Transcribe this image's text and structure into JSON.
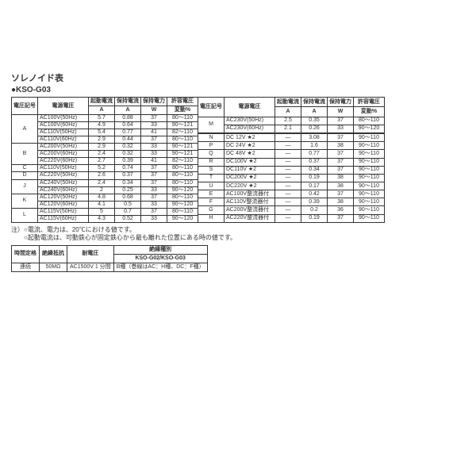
{
  "title": "ソレノイド表",
  "subtitle": "●KSO-G03",
  "columns": {
    "code_h": "電圧記号",
    "supply_h": "電源電圧",
    "inrush_h1": "起動電流",
    "inrush_h2": "A",
    "hold_a_h1": "保持電流",
    "hold_a_h2": "A",
    "hold_w_h1": "保持電力",
    "hold_w_h2": "W",
    "tol_h1": "許容電圧",
    "tol_h2": "変動%"
  },
  "left_rows": [
    {
      "code": "A",
      "span": 4,
      "supply": "AC100V(50Hz)",
      "inrush": "5.7",
      "holdA": "0.88",
      "holdW": "37",
      "tol": "80～110"
    },
    {
      "supply": "AC100V(60Hz)",
      "inrush": "4.9",
      "holdA": "0.64",
      "holdW": "33",
      "tol": "90～121"
    },
    {
      "supply": "AC110V(50Hz)",
      "inrush": "5.4",
      "holdA": "0.77",
      "holdW": "41",
      "tol": "82～110"
    },
    {
      "supply": "AC110V(60Hz)",
      "inrush": "2.9",
      "holdA": "0.44",
      "holdW": "37",
      "tol": "80～110"
    },
    {
      "code": "B",
      "span": 3,
      "supply": "AC200V(50Hz)",
      "inrush": "2.9",
      "holdA": "0.32",
      "holdW": "33",
      "tol": "90～121"
    },
    {
      "supply": "AC200V(60Hz)",
      "inrush": "2.4",
      "holdA": "0.32",
      "holdW": "33",
      "tol": "90～121"
    },
    {
      "supply": "AC220V(60Hz)",
      "inrush": "2.7",
      "holdA": "0.39",
      "holdW": "41",
      "tol": "82～110"
    },
    {
      "code": "C",
      "span": 1,
      "supply": "AC110V(50Hz)",
      "inrush": "5.2",
      "holdA": "0.74",
      "holdW": "37",
      "tol": "80～110"
    },
    {
      "code": "D",
      "span": 1,
      "supply": "AC220V(50Hz)",
      "inrush": "2.6",
      "holdA": "0.37",
      "holdW": "37",
      "tol": "80～110"
    },
    {
      "code": "J",
      "span": 2,
      "supply": "AC240V(50Hz)",
      "inrush": "2.4",
      "holdA": "0.34",
      "holdW": "37",
      "tol": "80～110"
    },
    {
      "supply": "AC240V(60Hz)",
      "inrush": "2",
      "holdA": "0.25",
      "holdW": "33",
      "tol": "90～120"
    },
    {
      "code": "K",
      "span": 2,
      "supply": "AC120V(50Hz)",
      "inrush": "4.8",
      "holdA": "0.68",
      "holdW": "37",
      "tol": "80～110"
    },
    {
      "supply": "AC120V(60Hz)",
      "inrush": "4.1",
      "holdA": "0.5",
      "holdW": "33",
      "tol": "90～120"
    },
    {
      "code": "L",
      "span": 2,
      "supply": "AC115V(50Hz)",
      "inrush": "5",
      "holdA": "0.7",
      "holdW": "37",
      "tol": "80～110"
    },
    {
      "supply": "AC115V(60Hz)",
      "inrush": "4.3",
      "holdA": "0.52",
      "holdW": "33",
      "tol": "90～120"
    }
  ],
  "right_rows": [
    {
      "code": "M",
      "span": 2,
      "supply": "AC230V(50Hz)",
      "inrush": "2.5",
      "holdA": "0.35",
      "holdW": "37",
      "tol": "80～110"
    },
    {
      "supply": "AC230V(60Hz)",
      "inrush": "2.1",
      "holdA": "0.26",
      "holdW": "33",
      "tol": "90～120"
    },
    {
      "code": "",
      "span": 1,
      "supply": "",
      "inrush": "",
      "holdA": "",
      "holdW": "",
      "tol": ""
    },
    {
      "code": "N",
      "span": 1,
      "supply": "DC 12V ★2",
      "inrush": "—",
      "holdA": "3.08",
      "holdW": "37",
      "tol": "90～110"
    },
    {
      "code": "P",
      "span": 1,
      "supply": "DC 24V ★2",
      "inrush": "—",
      "holdA": "1.6",
      "holdW": "38",
      "tol": "90～110"
    },
    {
      "code": "Q",
      "span": 1,
      "supply": "DC 48V ★2",
      "inrush": "—",
      "holdA": "0.77",
      "holdW": "37",
      "tol": "90～110"
    },
    {
      "code": "R",
      "span": 1,
      "supply": "DC100V ★2",
      "inrush": "—",
      "holdA": "0.37",
      "holdW": "37",
      "tol": "90～110"
    },
    {
      "code": "S",
      "span": 1,
      "supply": "DC110V ★2",
      "inrush": "—",
      "holdA": "0.34",
      "holdW": "37",
      "tol": "90～110"
    },
    {
      "code": "T",
      "span": 1,
      "supply": "DC200V ★2",
      "inrush": "—",
      "holdA": "0.19",
      "holdW": "38",
      "tol": "90～110"
    },
    {
      "code": "U",
      "span": 1,
      "supply": "DC220V ★2",
      "inrush": "—",
      "holdA": "0.17",
      "holdW": "38",
      "tol": "90～110"
    },
    {
      "code": "E",
      "span": 1,
      "supply": "AC100V整流器付",
      "inrush": "—",
      "holdA": "0.42",
      "holdW": "37",
      "tol": "90～110"
    },
    {
      "code": "F",
      "span": 1,
      "supply": "AC110V整流器付",
      "inrush": "—",
      "holdA": "0.39",
      "holdW": "38",
      "tol": "90～110"
    },
    {
      "code": "G",
      "span": 1,
      "supply": "AC200V整流器付",
      "inrush": "—",
      "holdA": "0.2",
      "holdW": "36",
      "tol": "90～110"
    },
    {
      "code": "H",
      "span": 1,
      "supply": "AC220V整流器付",
      "inrush": "—",
      "holdA": "0.19",
      "holdW": "37",
      "tol": "90～110"
    }
  ],
  "notes": {
    "l1": "注）○電流、電力は、20℃における値です。",
    "l2": "　　○起動電流は、可動鉄心が固定鉄心から最も離れた位置にある時の値です。"
  },
  "bottom": {
    "h_time": "時間定格",
    "h_ins": "絶縁抵抗",
    "h_wv": "耐電圧",
    "h_ins_type": "絶緣種別",
    "h_kso": "KSO-G02/KSO-G03",
    "time": "連続",
    "ins": "50MΩ",
    "wv": "AC1500V 1 分間",
    "kso": "B種（巻線はAC：H種、DC：F種）"
  },
  "col_widths": {
    "code": 32,
    "supply": 64,
    "inrush": 33,
    "holdA": 33,
    "holdW": 33,
    "tol": 39
  }
}
